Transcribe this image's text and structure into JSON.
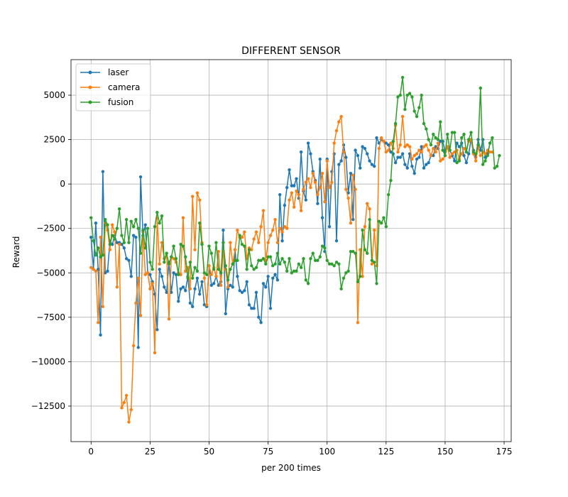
{
  "chart_data": {
    "type": "line",
    "title": "DIFFERENT SENSOR",
    "xlabel": "per 200 times",
    "ylabel": "Reward",
    "xlim": [
      -8.5,
      178
    ],
    "ylim": [
      -14500,
      7000
    ],
    "xticks": [
      0,
      25,
      50,
      75,
      100,
      125,
      150,
      175
    ],
    "yticks": [
      -12500,
      -10000,
      -7500,
      -5000,
      -2500,
      0,
      2500,
      5000
    ],
    "xtick_labels": [
      "0",
      "25",
      "50",
      "75",
      "100",
      "125",
      "150",
      "175"
    ],
    "ytick_labels": [
      "−12500",
      "−10000",
      "−7500",
      "−5000",
      "−2500",
      "0",
      "2500",
      "5000"
    ],
    "grid": true,
    "legend_position": "top-left",
    "series": [
      {
        "name": "laser",
        "color": "#1f77b4",
        "values": [
          -3000,
          -4800,
          -2200,
          -4800,
          -8500,
          700,
          -5000,
          -4900,
          -3200,
          -3400,
          -2900,
          -3300,
          -3300,
          -3400,
          -3600,
          -4200,
          -4300,
          -5200,
          -2900,
          -3000,
          -9200,
          400,
          -2900,
          -2300,
          -5000,
          -5100,
          -5500,
          -6200,
          -8200,
          -4800,
          -5200,
          -5800,
          -6100,
          -4400,
          -6100,
          -5000,
          -5100,
          -6600,
          -5900,
          -5800,
          -6000,
          -5200,
          -6700,
          -6900,
          -5900,
          -5300,
          -6200,
          -5500,
          -6800,
          -6900,
          -4600,
          -5700,
          -5600,
          -5200,
          -5700,
          -5500,
          -2600,
          -7300,
          -5900,
          -5700,
          -5800,
          -3700,
          -5200,
          -6000,
          -6100,
          -6000,
          -5500,
          -6800,
          -7000,
          -7000,
          -6100,
          -7500,
          -7800,
          -5600,
          -5800,
          -5200,
          -7000,
          -5300,
          -5100,
          -5400,
          -600,
          -3200,
          -1200,
          -200,
          800,
          -100,
          -100,
          300,
          -800,
          1800,
          -400,
          -900,
          2300,
          1700,
          700,
          200,
          -1100,
          1400,
          -1900,
          -3800,
          1400,
          -2400,
          700,
          1700,
          -3200,
          1100,
          1300,
          2200,
          1500,
          -500,
          600,
          -2000,
          1900,
          1600,
          900,
          2100,
          2000,
          1700,
          1300,
          1100,
          1000,
          2600,
          2300,
          2500,
          2400,
          2300,
          2200,
          1800,
          1700,
          1200,
          1500,
          1500,
          1700,
          1100,
          900,
          1700,
          1000,
          600,
          1400,
          1500,
          2100,
          900,
          1100,
          1200,
          1600,
          1600,
          2100,
          2000,
          2400,
          2400,
          1800,
          2100,
          1900,
          1600,
          1300,
          2300,
          2100,
          2300,
          1600,
          1200,
          1700,
          2500,
          1900,
          1500,
          2500,
          1900,
          2500,
          1500,
          1700,
          2300
        ],
        "x_start": 0
      },
      {
        "name": "camera",
        "color": "#ff7f0e",
        "values": [
          -4700,
          -4800,
          -4900,
          -7800,
          -3000,
          -6900,
          -2200,
          -2600,
          -3700,
          -2300,
          -2700,
          -5800,
          -3400,
          -12600,
          -12300,
          -11900,
          -13400,
          -12700,
          -9100,
          -6700,
          -5300,
          -7400,
          -2700,
          -5100,
          -5000,
          -5900,
          -5600,
          -9500,
          -1900,
          -4500,
          -3300,
          -4200,
          -3900,
          -7600,
          -4100,
          -4200,
          -4400,
          -5000,
          -5100,
          -1900,
          -4900,
          -4700,
          -5900,
          -700,
          -3700,
          -500,
          -900,
          -3300,
          -5300,
          -6800,
          -4600,
          -5100,
          -4700,
          -5200,
          -3800,
          -5700,
          -3800,
          -4800,
          -5800,
          -3300,
          -4500,
          -3700,
          -2600,
          -3000,
          -3000,
          -2700,
          -4200,
          -3600,
          -3700,
          -3100,
          -2700,
          -3300,
          -2400,
          -1500,
          -4300,
          -3300,
          -2900,
          -2600,
          -2000,
          -3300,
          -2500,
          -2700,
          -2400,
          -2500,
          -900,
          -500,
          -1300,
          -400,
          -600,
          -1500,
          -300,
          100,
          300,
          -200,
          600,
          100,
          -600,
          -200,
          600,
          -1000,
          1300,
          -200,
          100,
          2300,
          3000,
          3500,
          3800,
          1800,
          -300,
          -800,
          -2200,
          500,
          -300,
          -7800,
          -3700,
          -5200,
          -2400,
          -1100,
          -1400,
          -4500,
          -2600,
          -4600,
          2000,
          2600,
          2400,
          1800,
          1900,
          2300,
          2000,
          3300,
          1800,
          2200,
          3800,
          2100,
          2200,
          2100,
          1400,
          1600,
          1700,
          1900,
          1800,
          2100,
          2200,
          1900,
          1600,
          2000,
          1800,
          2300,
          1300,
          1400,
          1600,
          2100,
          1500,
          1700,
          1800,
          1900,
          1400,
          1700,
          2000,
          1800,
          2400,
          2500,
          1700,
          1300,
          2100,
          1600,
          1800,
          1700,
          1900,
          1800,
          1800
        ],
        "x_start": 0
      },
      {
        "name": "fusion",
        "color": "#2ca02c",
        "values": [
          -1900,
          -3200,
          -4000,
          -3600,
          -4100,
          -4000,
          -2000,
          -2300,
          -3400,
          -2900,
          -3100,
          -2500,
          -1400,
          -2900,
          -3300,
          -2000,
          -3300,
          -2100,
          -2400,
          -2000,
          -2500,
          -3900,
          -2600,
          -3600,
          -2500,
          -4400,
          -4800,
          -2400,
          -1600,
          -2200,
          -1800,
          -4400,
          -3900,
          -4500,
          -4100,
          -3500,
          -4200,
          -5100,
          -3400,
          -3500,
          -4100,
          -5300,
          -4400,
          -5300,
          -4700,
          -4900,
          -2200,
          -3400,
          -5000,
          -5100,
          -3500,
          -3900,
          -4800,
          -3300,
          -4800,
          -5000,
          -3300,
          -4600,
          -5400,
          -4800,
          -4500,
          -4300,
          -4300,
          -2900,
          -3400,
          -3500,
          -4800,
          -3700,
          -4600,
          -4800,
          -4700,
          -4300,
          -4300,
          -4200,
          -4500,
          -4100,
          -4100,
          -4600,
          -4500,
          -3900,
          -4500,
          -4200,
          -4400,
          -4900,
          -4200,
          -5000,
          -4900,
          -4900,
          -4500,
          -4700,
          -4200,
          -5400,
          -5600,
          -4200,
          -3900,
          -4300,
          -4300,
          -4100,
          -3500,
          -3600,
          -4300,
          -4500,
          -4500,
          -4600,
          -4400,
          -4500,
          -5900,
          -5300,
          -5000,
          -4900,
          -3800,
          -3800,
          -3900,
          -5500,
          -5200,
          -2600,
          -3700,
          -3900,
          -2000,
          -4300,
          -4400,
          -5600,
          -2100,
          -2200,
          -1900,
          -2400,
          -600,
          200,
          2400,
          3400,
          4900,
          5000,
          6000,
          4200,
          5000,
          5100,
          4900,
          4100,
          3800,
          4300,
          5000,
          3400,
          3100,
          2500,
          2200,
          2800,
          2600,
          2500,
          3500,
          1900,
          1600,
          2800,
          1900,
          2900,
          2900,
          1200,
          1300,
          2600,
          2800,
          1800,
          2500,
          2900,
          1800,
          1700,
          2200,
          5400,
          1100,
          1300,
          1600,
          2300,
          2600,
          900,
          1000,
          1600
        ],
        "x_start": 0
      }
    ]
  }
}
